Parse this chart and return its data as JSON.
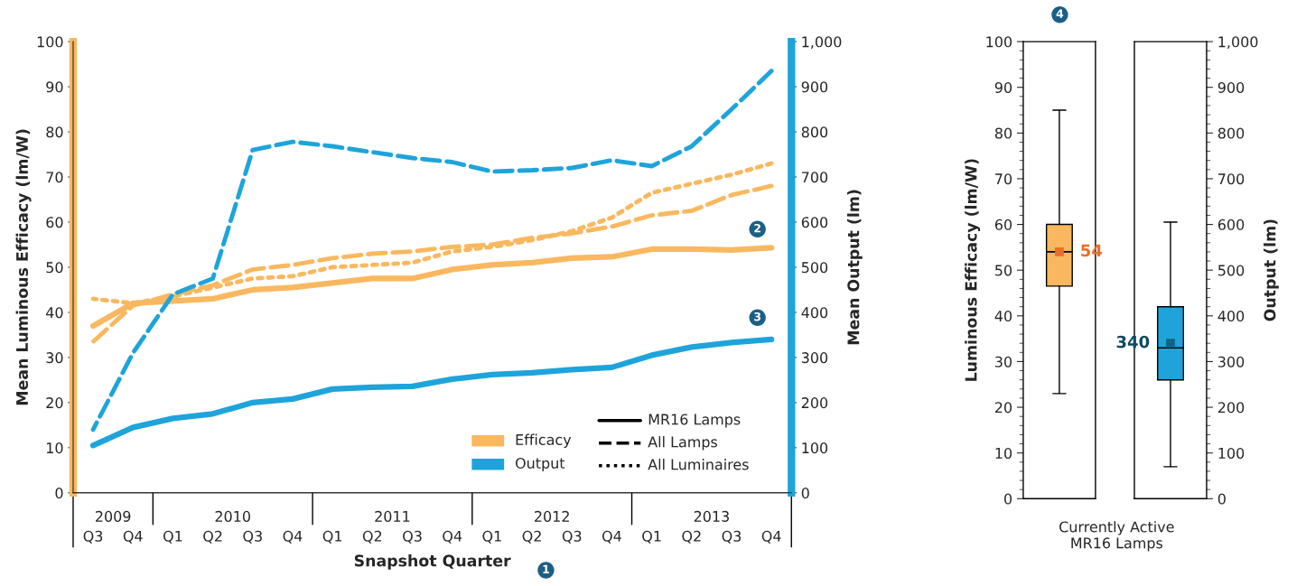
{
  "chart_data": [
    {
      "type": "line",
      "xlabel": "Snapshot Quarter",
      "ylabel": "Mean Luminous Efficacy (lm/W)",
      "y2label": "Mean Output (lm)",
      "categories": [
        "Q3",
        "Q4",
        "Q1",
        "Q2",
        "Q3",
        "Q4",
        "Q1",
        "Q2",
        "Q3",
        "Q4",
        "Q1",
        "Q2",
        "Q3",
        "Q4",
        "Q1",
        "Q2",
        "Q3",
        "Q4"
      ],
      "series": [
        {
          "color": "#f9b85f",
          "line_style": "solid",
          "values": [
            37,
            42,
            42.5,
            43,
            45,
            45.5,
            46.5,
            47.5,
            47.5,
            49.5,
            50.5,
            51,
            52,
            52.3,
            54,
            54,
            53.8,
            54.3
          ]
        },
        {
          "color": "#f9b85f",
          "line_style": "dashed",
          "values": [
            33.5,
            41.5,
            44,
            46,
            49.5,
            50.5,
            52,
            53,
            53.5,
            54.5,
            55,
            56.5,
            57.5,
            59,
            61.5,
            62.5,
            66,
            68
          ]
        },
        {
          "color": "#f9b85f",
          "line_style": "dotted",
          "values": [
            43,
            42,
            43.5,
            45.5,
            47.5,
            48,
            50,
            50.5,
            51,
            53.5,
            54.5,
            56,
            58,
            61,
            66.5,
            68.5,
            70.5,
            73
          ]
        },
        {
          "color": "#1ea4db",
          "line_style": "solid",
          "axis": "y2",
          "values": [
            105,
            145,
            165,
            175,
            200,
            208,
            230,
            234,
            236,
            252,
            262,
            266,
            273,
            278,
            305,
            323,
            333,
            340
          ]
        },
        {
          "color": "#1ea4db",
          "line_style": "dashed",
          "axis": "y2",
          "values": [
            140,
            310,
            440,
            475,
            760,
            778,
            768,
            755,
            742,
            733,
            712,
            715,
            720,
            737,
            724,
            768,
            850,
            935
          ]
        }
      ],
      "ylim": [
        0,
        100
      ],
      "yticks": [
        0,
        10,
        20,
        30,
        40,
        50,
        60,
        70,
        80,
        90,
        100
      ],
      "y2lim": [
        0,
        1000
      ],
      "y2ticks": [
        0,
        100,
        200,
        300,
        400,
        500,
        600,
        700,
        800,
        900,
        {
          "value": 1000,
          "label": "1,000"
        }
      ],
      "grid": false,
      "marker": "none",
      "annotations": [
        "Efficacy",
        "Output",
        "MR16 Lamps",
        "All Lamps",
        "All Luminaires",
        "2009",
        "2010",
        "2011",
        "2012",
        "2013",
        "1",
        "2",
        "3"
      ]
    },
    {
      "type": "box",
      "xlabel": "Currently Active\nMR16 Lamps",
      "ylabel": "Luminous Efficacy (lm/W)",
      "categories": [
        null
      ],
      "series": [
        {
          "color": "#f9b85f",
          "boxes": [
            {
              "low": 23,
              "q1": 46.5,
              "median": 54,
              "q3": 60,
              "high": 85,
              "mean": 54
            }
          ]
        }
      ],
      "ylim": [
        0,
        100
      ],
      "yticks": [
        0,
        10,
        20,
        30,
        40,
        50,
        60,
        70,
        80,
        90,
        100
      ],
      "grid": false,
      "annotations": [
        "54",
        "4"
      ]
    },
    {
      "type": "box",
      "ylabel": "Output (lm)",
      "categories": [
        null
      ],
      "series": [
        {
          "color": "#1ea4db",
          "boxes": [
            {
              "low": 70,
              "q1": 260,
              "median": 330,
              "q3": 420,
              "high": 605,
              "mean": 340
            }
          ]
        }
      ],
      "ylim": [
        0,
        1000
      ],
      "yticks": [
        0,
        100,
        200,
        300,
        400,
        500,
        600,
        700,
        800,
        900,
        {
          "value": 1000,
          "label": "1,000"
        }
      ],
      "grid": false,
      "annotations": [
        "340"
      ]
    }
  ]
}
